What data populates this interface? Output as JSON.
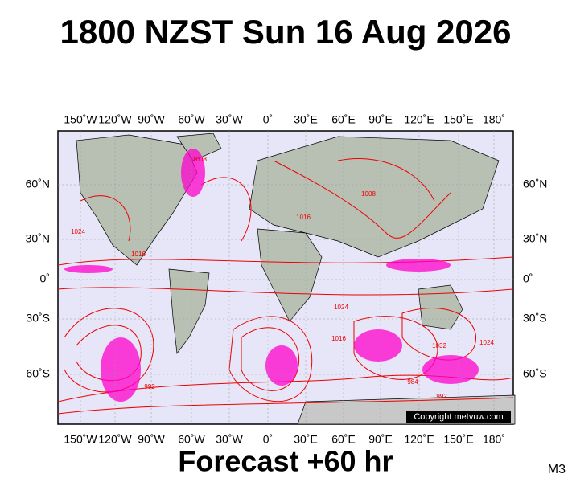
{
  "header": {
    "title": "1800 NZST Sun 16 Aug 2026"
  },
  "map": {
    "lon_labels": [
      "150˚W",
      "120˚W",
      "90˚W",
      "60˚W",
      "30˚W",
      "0˚",
      "30˚E",
      "60˚E",
      "90˚E",
      "120˚E",
      "150˚E",
      "180˚"
    ],
    "lat_labels": [
      "60˚N",
      "30˚N",
      "0˚",
      "30˚S",
      "60˚S"
    ],
    "isobar_labels": [
      "1024",
      "1016",
      "1008",
      "1016",
      "1008",
      "1024",
      "1016",
      "1032",
      "1024",
      "992",
      "984",
      "992"
    ],
    "copyright": "Copyright metvuw.com"
  },
  "footer": {
    "caption": "Forecast +60 hr",
    "code": "M3"
  }
}
